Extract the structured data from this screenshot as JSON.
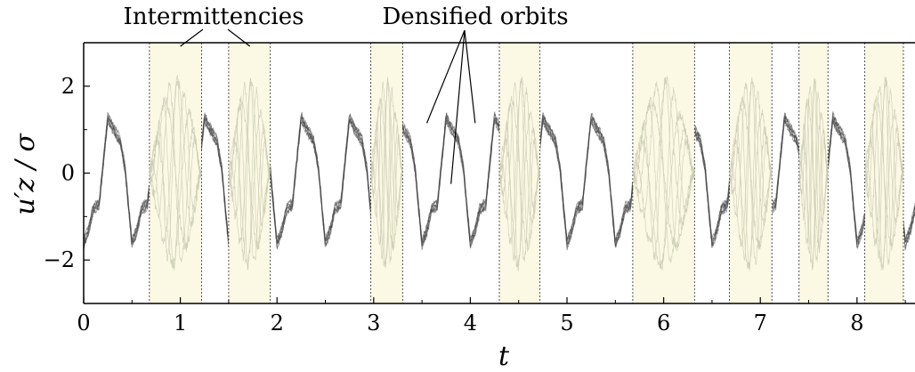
{
  "chart_data": {
    "type": "scatter",
    "xlabel": "t",
    "ylabel": "u′z / σ",
    "xlim": [
      0,
      8.6
    ],
    "ylim": [
      -3,
      3
    ],
    "x_ticks": [
      {
        "value": 0,
        "label": "0"
      },
      {
        "value": 1,
        "label": "1"
      },
      {
        "value": 2,
        "label": "2"
      },
      {
        "value": 3,
        "label": "3"
      },
      {
        "value": 4,
        "label": "4"
      },
      {
        "value": 5,
        "label": "5"
      },
      {
        "value": 6,
        "label": "6"
      },
      {
        "value": 7,
        "label": "7"
      },
      {
        "value": 8,
        "label": "8"
      }
    ],
    "y_ticks": [
      {
        "value": 2,
        "label": "2"
      },
      {
        "value": 0,
        "label": "0"
      },
      {
        "value": -2,
        "label": "−2"
      }
    ],
    "grid": false,
    "intermittency_intervals": [
      [
        0.68,
        1.22
      ],
      [
        1.5,
        1.93
      ],
      [
        2.97,
        3.3
      ],
      [
        4.3,
        4.72
      ],
      [
        5.68,
        6.32
      ],
      [
        6.68,
        7.12
      ],
      [
        7.4,
        7.7
      ],
      [
        8.08,
        8.48
      ]
    ],
    "annotations": [
      {
        "text": "Intermittencies",
        "targets_x": [
          1.0,
          1.72
        ],
        "target_y": 3.0
      },
      {
        "text": "Densified orbits",
        "targets": [
          [
            3.55,
            1.15
          ],
          [
            3.8,
            -0.25
          ],
          [
            4.05,
            1.15
          ]
        ]
      }
    ],
    "colors": {
      "orbit": "#3a3a3a",
      "intermittency_fill": "#fbf8e4",
      "intermittency_trace": "#c9cbb0"
    }
  }
}
